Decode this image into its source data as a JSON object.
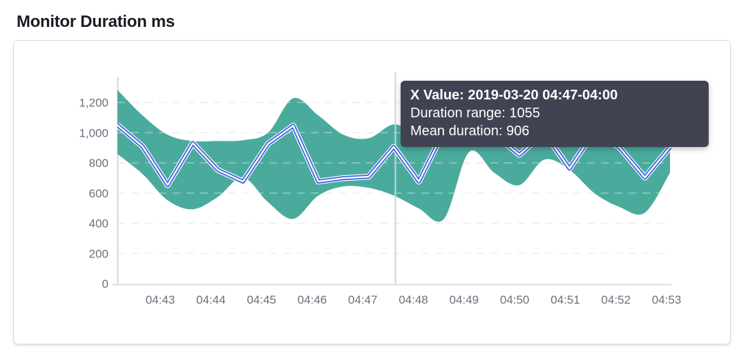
{
  "page": {
    "title": "Monitor Duration ms"
  },
  "colors": {
    "band": "#4aab9d",
    "mean_line": "#3b64d8",
    "mean_core": "#ffffff",
    "grid": "#e0e3e9",
    "grid_over_band": "rgba(255,255,255,0.40)",
    "axis_bottom": "#e4e6eb",
    "axis_left": "#d9dde4",
    "crosshair": "#ced3da",
    "tick_label": "#69707d",
    "tooltip_bg": "#404352",
    "tooltip_text": "#ffffff",
    "panel_border": "#d6dae6",
    "title_color": "#1a1d23"
  },
  "tooltip": {
    "title": "X Value: 2019-03-20 04:47-04:00",
    "rows": [
      "Duration range: 1055",
      "Mean duration: 906"
    ]
  },
  "chart_data": {
    "type": "area",
    "title": "Monitor Duration ms",
    "x_tick_labels": [
      "04:43",
      "04:44",
      "04:45",
      "04:46",
      "04:47",
      "04:48",
      "04:49",
      "04:50",
      "04:51",
      "04:52",
      "04:53"
    ],
    "y_ticks": [
      0,
      200,
      400,
      600,
      800,
      1000,
      1200
    ],
    "y_tick_labels": [
      "0",
      "200",
      "400",
      "600",
      "800",
      "1,000",
      "1,200"
    ],
    "ylim": [
      0,
      1340
    ],
    "grid": "horizontal-dashed",
    "legend": "none",
    "series": [
      {
        "name": "Duration range",
        "type": "band",
        "upper": [
          1283,
          1114,
          986,
          945,
          945,
          950,
          1000,
          1228,
          1114,
          986,
          963,
          1055,
          1000,
          1150,
          1160,
          1100,
          1050,
          1120,
          950,
          1120,
          1050,
          950,
          1000
        ],
        "lower": [
          858,
          726,
          552,
          493,
          575,
          703,
          539,
          429,
          584,
          644,
          635,
          584,
          498,
          429,
          872,
          735,
          653,
          822,
          753,
          598,
          507,
          470,
          735
        ]
      },
      {
        "name": "Mean duration",
        "type": "line",
        "values": [
          1050,
          909,
          653,
          931,
          753,
          676,
          927,
          1046,
          676,
          699,
          708,
          906,
          676,
          1010,
          1045,
          990,
          854,
          1000,
          762,
          1010,
          900,
          703,
          904
        ]
      }
    ],
    "highlight": {
      "index": 11,
      "x_value": "2019-03-20 04:47-04:00",
      "duration_range": 1055,
      "mean_duration": 906
    }
  }
}
